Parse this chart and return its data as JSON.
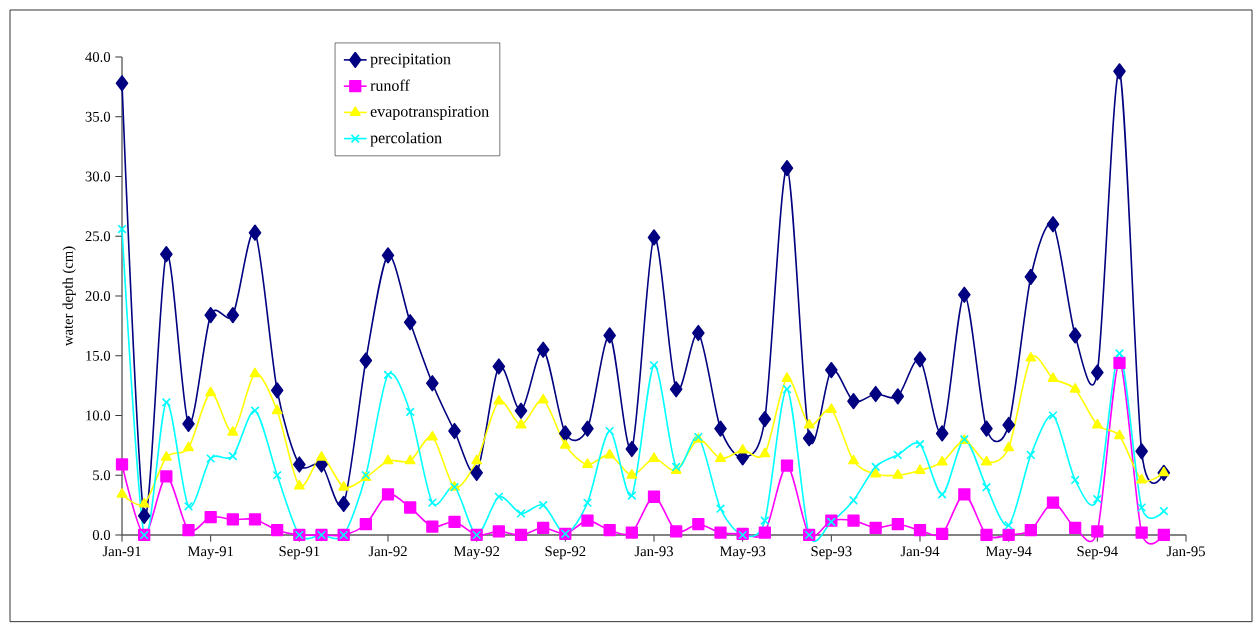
{
  "chart_data": {
    "type": "line",
    "ylabel": "water depth (cm)",
    "legend": "top",
    "line_style": "solid",
    "grid": false,
    "x": [
      "1991-01",
      "1991-02",
      "1991-03",
      "1991-04",
      "1991-05",
      "1991-06",
      "1991-07",
      "1991-08",
      "1991-09",
      "1991-10",
      "1991-11",
      "1991-12",
      "1992-01",
      "1992-02",
      "1992-03",
      "1992-04",
      "1992-05",
      "1992-06",
      "1992-07",
      "1992-08",
      "1992-09",
      "1992-10",
      "1992-11",
      "1992-12",
      "1993-01",
      "1993-02",
      "1993-03",
      "1993-04",
      "1993-05",
      "1993-06",
      "1993-07",
      "1993-08",
      "1993-09",
      "1993-10",
      "1993-11",
      "1993-12",
      "1994-01",
      "1994-02",
      "1994-03",
      "1994-04",
      "1994-05",
      "1994-06",
      "1994-07",
      "1994-08",
      "1994-09",
      "1994-10",
      "1994-11",
      "1994-12"
    ],
    "xlim": [
      "1991-01",
      "1995-01"
    ],
    "xticks": [
      {
        "value": "1991-01",
        "label": "Jan-91"
      },
      {
        "value": "1991-05",
        "label": "May-91"
      },
      {
        "value": "1991-09",
        "label": "Sep-91"
      },
      {
        "value": "1992-01",
        "label": "Jan-92"
      },
      {
        "value": "1992-05",
        "label": "May-92"
      },
      {
        "value": "1992-09",
        "label": "Sep-92"
      },
      {
        "value": "1993-01",
        "label": "Jan-93"
      },
      {
        "value": "1993-05",
        "label": "May-93"
      },
      {
        "value": "1993-09",
        "label": "Sep-93"
      },
      {
        "value": "1994-01",
        "label": "Jan-94"
      },
      {
        "value": "1994-05",
        "label": "May-94"
      },
      {
        "value": "1994-09",
        "label": "Sep-94"
      },
      {
        "value": "1995-01",
        "label": "Jan-95"
      }
    ],
    "ylim": [
      0,
      40
    ],
    "yticks": [
      {
        "value": 0,
        "label": "0.0"
      },
      {
        "value": 5,
        "label": "5.0"
      },
      {
        "value": 10,
        "label": "10.0"
      },
      {
        "value": 15,
        "label": "15.0"
      },
      {
        "value": 20,
        "label": "20.0"
      },
      {
        "value": 25,
        "label": "25.0"
      },
      {
        "value": 30,
        "label": "30.0"
      },
      {
        "value": 35,
        "label": "35.0"
      },
      {
        "value": 40,
        "label": "40.0"
      }
    ],
    "series": [
      {
        "name": "precipitation",
        "color": "#000080",
        "marker": "diamond",
        "values": [
          37.8,
          1.6,
          23.5,
          9.3,
          18.4,
          18.4,
          25.3,
          12.1,
          5.9,
          5.9,
          2.6,
          14.6,
          23.4,
          17.8,
          12.7,
          8.7,
          5.2,
          14.1,
          10.4,
          15.5,
          8.5,
          8.9,
          16.7,
          7.2,
          24.9,
          12.2,
          16.9,
          8.9,
          6.5,
          9.7,
          30.7,
          8.1,
          13.8,
          11.2,
          11.8,
          11.6,
          14.7,
          8.5,
          20.1,
          8.9,
          9.2,
          21.6,
          26.0,
          16.7,
          13.6,
          38.8,
          7.0,
          5.2
        ]
      },
      {
        "name": "runoff",
        "color": "#ff00ff",
        "marker": "square",
        "values": [
          5.9,
          0,
          4.9,
          0.4,
          1.5,
          1.3,
          1.3,
          0.4,
          0,
          0,
          0,
          0.9,
          3.4,
          2.3,
          0.7,
          1.1,
          0,
          0.3,
          0,
          0.6,
          0.1,
          1.2,
          0.4,
          0.2,
          3.2,
          0.3,
          0.9,
          0.2,
          0.1,
          0.2,
          5.8,
          0,
          1.2,
          1.2,
          0.6,
          0.9,
          0.4,
          0.1,
          3.4,
          0,
          0,
          0.4,
          2.7,
          0.6,
          0.3,
          14.4,
          0.2,
          0
        ]
      },
      {
        "name": "evapotranspiration",
        "color": "#ffff00",
        "marker": "triangle",
        "values": [
          3.4,
          2.6,
          6.5,
          7.3,
          11.9,
          8.6,
          13.5,
          10.4,
          4.1,
          6.5,
          4.0,
          4.8,
          6.2,
          6.2,
          8.2,
          4.0,
          6.2,
          11.2,
          9.2,
          11.3,
          7.5,
          5.9,
          6.7,
          5.0,
          6.4,
          5.4,
          8.0,
          6.4,
          7.1,
          6.8,
          13.1,
          9.2,
          10.5,
          6.2,
          5.1,
          5.0,
          5.4,
          6.1,
          7.9,
          6.1,
          7.3,
          14.8,
          13.1,
          12.2,
          9.2,
          8.3,
          4.6,
          5.2
        ]
      },
      {
        "name": "percolation",
        "color": "#00ffff",
        "marker": "cross",
        "values": [
          25.6,
          0,
          11.1,
          2.4,
          6.4,
          6.6,
          10.4,
          5.0,
          0,
          0,
          0,
          5.0,
          13.4,
          10.3,
          2.7,
          4.0,
          0,
          3.2,
          1.8,
          2.5,
          0.1,
          2.7,
          8.7,
          3.3,
          14.2,
          5.7,
          8.2,
          2.2,
          0,
          1.2,
          12.2,
          0,
          1.1,
          2.9,
          5.7,
          6.7,
          7.6,
          3.4,
          8.0,
          4.0,
          0.8,
          6.7,
          10.0,
          4.6,
          3.0,
          15.2,
          2.3,
          2.0
        ]
      }
    ]
  }
}
